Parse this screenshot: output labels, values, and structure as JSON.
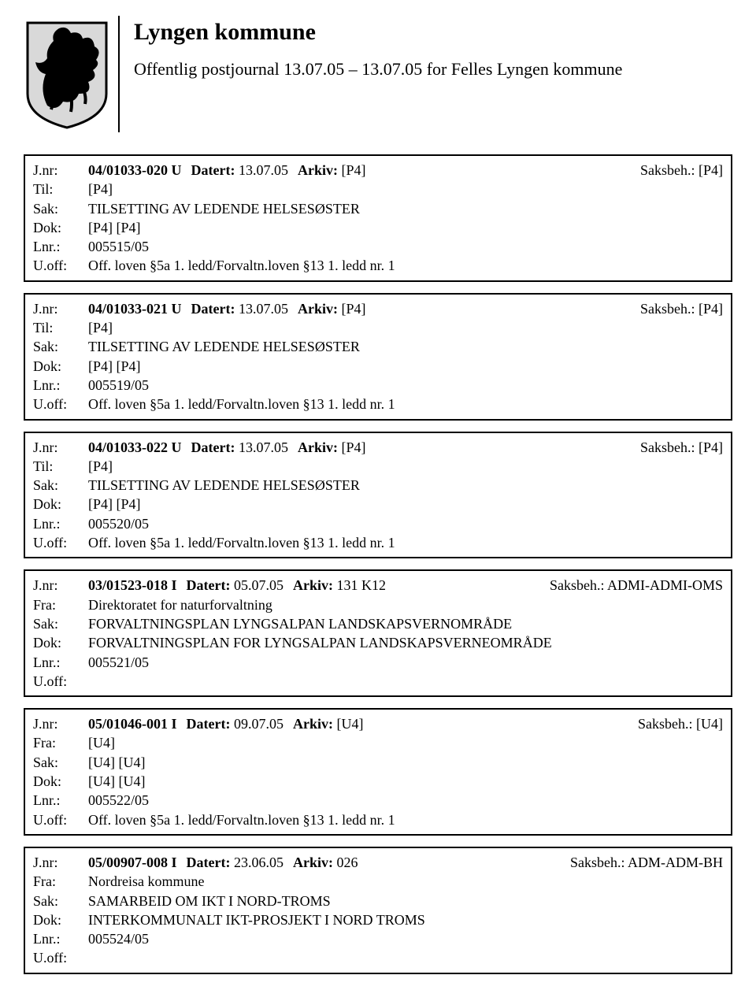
{
  "header": {
    "title": "Lyngen kommune",
    "subtitle": "Offentlig postjournal 13.07.05 – 13.07.05 for Felles Lyngen kommune"
  },
  "labels": {
    "jnr": "J.nr:",
    "til": "Til:",
    "fra": "Fra:",
    "sak": "Sak:",
    "dok": "Dok:",
    "lnr": "Lnr.:",
    "uoff": "U.off:",
    "datert": "Datert:",
    "arkiv": "Arkiv:",
    "saksbeh": "Saksbeh.:"
  },
  "entries": [
    {
      "jnr": "04/01033-020 U",
      "datert": "13.07.05",
      "arkiv": "[P4]",
      "saksbeh": "[P4]",
      "direction": "Til:",
      "party": "[P4]",
      "sak": "TILSETTING AV LEDENDE HELSESØSTER",
      "dok": "[P4] [P4]",
      "lnr": "005515/05",
      "uoff": "Off. loven §5a 1. ledd/Forvaltn.loven §13 1. ledd nr. 1"
    },
    {
      "jnr": "04/01033-021 U",
      "datert": "13.07.05",
      "arkiv": "[P4]",
      "saksbeh": "[P4]",
      "direction": "Til:",
      "party": "[P4]",
      "sak": "TILSETTING AV LEDENDE HELSESØSTER",
      "dok": "[P4] [P4]",
      "lnr": "005519/05",
      "uoff": "Off. loven §5a 1. ledd/Forvaltn.loven §13 1. ledd nr. 1"
    },
    {
      "jnr": "04/01033-022 U",
      "datert": "13.07.05",
      "arkiv": "[P4]",
      "saksbeh": "[P4]",
      "direction": "Til:",
      "party": "[P4]",
      "sak": "TILSETTING AV LEDENDE HELSESØSTER",
      "dok": "[P4] [P4]",
      "lnr": "005520/05",
      "uoff": "Off. loven §5a 1. ledd/Forvaltn.loven §13 1. ledd nr. 1"
    },
    {
      "jnr": "03/01523-018 I",
      "datert": "05.07.05",
      "arkiv": "131 K12",
      "saksbeh": "ADMI-ADMI-OMS",
      "direction": "Fra:",
      "party": "Direktoratet for naturforvaltning",
      "sak": "FORVALTNINGSPLAN LYNGSALPAN LANDSKAPSVERNOMRÅDE",
      "dok": "FORVALTNINGSPLAN FOR LYNGSALPAN LANDSKAPSVERNEOMRÅDE",
      "lnr": "005521/05",
      "uoff": ""
    },
    {
      "jnr": "05/01046-001 I",
      "datert": "09.07.05",
      "arkiv": "[U4]",
      "saksbeh": "[U4]",
      "direction": "Fra:",
      "party": "[U4]",
      "sak": "[U4] [U4]",
      "dok": "[U4] [U4]",
      "lnr": "005522/05",
      "uoff": "Off. loven §5a 1. ledd/Forvaltn.loven §13 1. ledd nr. 1"
    },
    {
      "jnr": "05/00907-008 I",
      "datert": "23.06.05",
      "arkiv": "026",
      "saksbeh": "ADM-ADM-BH",
      "direction": "Fra:",
      "party": "Nordreisa kommune",
      "sak": "SAMARBEID OM IKT I NORD-TROMS",
      "dok": "INTERKOMMUNALT IKT-PROSJEKT I NORD TROMS",
      "lnr": "005524/05",
      "uoff": ""
    }
  ]
}
